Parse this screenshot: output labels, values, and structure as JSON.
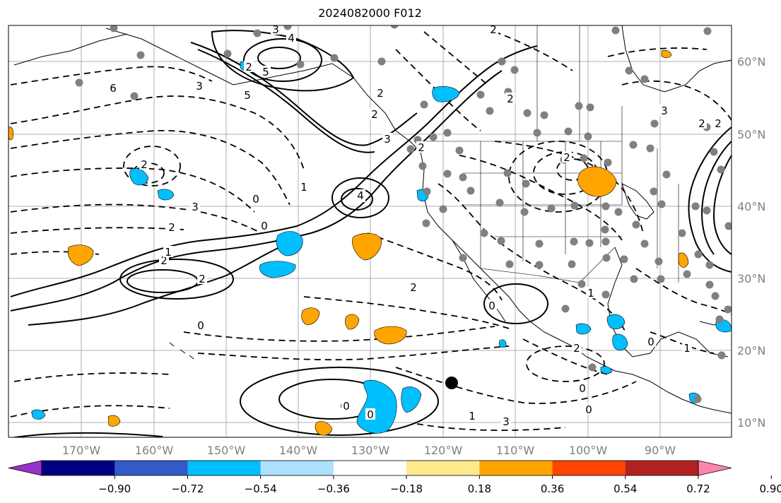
{
  "title": "2024082000 F012",
  "map": {
    "lat_labels": [
      "60°N",
      "50°N",
      "40°N",
      "30°N",
      "20°N",
      "10°N"
    ],
    "lon_labels": [
      "170°W",
      "160°W",
      "150°W",
      "140°W",
      "130°W",
      "120°W",
      "110°W",
      "100°W",
      "90°W"
    ],
    "contour_labels": [
      "3",
      "4",
      "5",
      "5",
      "3",
      "2",
      "2",
      "2",
      "2",
      "0",
      "4",
      "3",
      "2",
      "1",
      "0",
      "2",
      "2",
      "1",
      "2",
      "2",
      "3",
      "3",
      "0",
      "1",
      "2",
      "3",
      "0",
      "0",
      "1",
      "0",
      "0",
      "2",
      "2",
      "0",
      "1",
      "2",
      "0",
      "6",
      "2",
      "3",
      "2",
      "0",
      "4"
    ],
    "colors": {
      "land_outline": "#000000",
      "grid": "#999999",
      "station_dot": "#808080",
      "tick_label": "#808080",
      "positive_anomaly": "#FFA500",
      "negative_anomaly": "#00BFFF",
      "storm_marker": "#000000"
    }
  },
  "colorbar": {
    "tick_labels": [
      "−0.90",
      "−0.72",
      "−0.54",
      "−0.36",
      "−0.18",
      "0.18",
      "0.36",
      "0.54",
      "0.72",
      "0.90"
    ],
    "segment_colors": [
      "#9932CC",
      "#000080",
      "#3459C9",
      "#00BFFF",
      "#ADDFFF",
      "#FFFFFF",
      "#FFEA8C",
      "#FFA500",
      "#FF4500",
      "#B22222",
      "#FF85AD"
    ]
  }
}
